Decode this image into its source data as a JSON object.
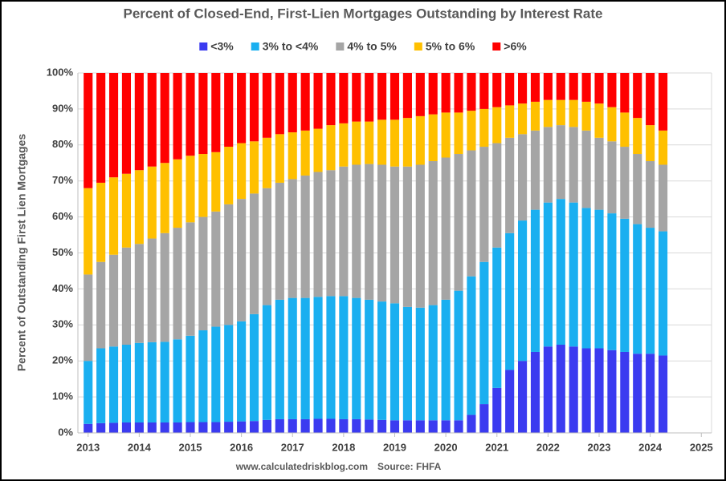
{
  "chart_data": {
    "type": "stacked_bar",
    "title": "Percent of Closed-End, First-Lien Mortgages Outstanding by Interest Rate",
    "y_label": "Percent of Outstanding First Lien Mortgages",
    "footer": [
      "www.calculatedriskblog.com",
      "Source: FHFA"
    ],
    "x": [
      2013,
      2013.25,
      2013.5,
      2013.75,
      2014,
      2014.25,
      2014.5,
      2014.75,
      2015,
      2015.25,
      2015.5,
      2015.75,
      2016,
      2016.25,
      2016.5,
      2016.75,
      2017,
      2017.25,
      2017.5,
      2017.75,
      2018,
      2018.25,
      2018.5,
      2018.75,
      2019,
      2019.25,
      2019.5,
      2019.75,
      2020,
      2020.25,
      2020.5,
      2020.75,
      2021,
      2021.25,
      2021.5,
      2021.75,
      2022,
      2022.25,
      2022.5,
      2022.75,
      2023,
      2023.25,
      2023.5,
      2023.75,
      2024,
      2024.25
    ],
    "xlim": [
      2012.8,
      2025.2
    ],
    "xticks": [
      2013,
      2014,
      2015,
      2016,
      2017,
      2018,
      2019,
      2020,
      2021,
      2022,
      2023,
      2024,
      2025
    ],
    "ylim": [
      0,
      100
    ],
    "yticks": [
      {
        "value": 0,
        "label": "0%"
      },
      {
        "value": 10,
        "label": "10%"
      },
      {
        "value": 20,
        "label": "20%"
      },
      {
        "value": 30,
        "label": "30%"
      },
      {
        "value": 40,
        "label": "40%"
      },
      {
        "value": 50,
        "label": "50%"
      },
      {
        "value": 60,
        "label": "60%"
      },
      {
        "value": 70,
        "label": "70%"
      },
      {
        "value": 80,
        "label": "80%"
      },
      {
        "value": 90,
        "label": "90%"
      },
      {
        "value": 100,
        "label": "100%"
      }
    ],
    "grid": true,
    "legend": "top",
    "series": [
      {
        "name": "<3%",
        "color": "#3b3bf0",
        "values": [
          2.5,
          2.7,
          2.8,
          2.9,
          2.9,
          2.9,
          2.9,
          2.9,
          3,
          3,
          3,
          3.1,
          3.2,
          3.3,
          3.6,
          3.8,
          3.8,
          3.8,
          3.9,
          3.9,
          3.8,
          3.8,
          3.7,
          3.6,
          3.5,
          3.5,
          3.5,
          3.5,
          3.5,
          3.5,
          5,
          8,
          12.5,
          17.5,
          20,
          22.5,
          24,
          24.5,
          24,
          23.5,
          23.5,
          23,
          22.5,
          22,
          22,
          21.5
        ]
      },
      {
        "name": "3% to <4%",
        "color": "#1aaff0",
        "values": [
          17.5,
          20.8,
          21.2,
          21.6,
          22.1,
          22.3,
          22.4,
          23.1,
          24,
          25.5,
          26.5,
          26.9,
          27.8,
          29.7,
          31.9,
          33.2,
          33.7,
          33.7,
          33.9,
          34.1,
          34.2,
          33.7,
          33.3,
          32.9,
          32.5,
          31.5,
          31.3,
          32,
          33.5,
          36,
          38.5,
          39.5,
          39,
          38,
          39,
          39.5,
          40,
          40.5,
          40,
          39,
          38.5,
          38,
          37,
          36,
          35,
          34.5
        ]
      },
      {
        "name": "4% to 5%",
        "color": "#a5a5a5",
        "values": [
          24,
          24,
          25.5,
          27,
          27.5,
          28.8,
          30.2,
          31,
          31.5,
          31.5,
          32,
          33.5,
          34,
          33.5,
          32.5,
          32.5,
          33,
          34,
          34.7,
          35,
          36,
          37,
          37.7,
          38,
          38,
          39,
          39.7,
          40,
          39.5,
          38,
          35,
          32,
          29,
          26.5,
          24,
          22,
          21,
          20.5,
          21,
          21.5,
          20,
          20,
          20,
          19.5,
          18.5,
          18.5
        ]
      },
      {
        "name": "5% to 6%",
        "color": "#ffc000",
        "values": [
          24,
          22,
          21.5,
          20.5,
          20.5,
          20,
          19.5,
          19,
          18.5,
          17.5,
          16.5,
          16,
          15.5,
          14.5,
          14,
          13.5,
          13,
          12.5,
          12,
          12.5,
          12,
          12,
          11.8,
          12.5,
          13,
          13.5,
          13.5,
          13,
          12.5,
          11.5,
          11,
          10.5,
          10,
          9,
          8.5,
          8,
          7.5,
          7,
          7.5,
          8,
          9.5,
          9.5,
          9.5,
          10,
          10,
          9.5
        ]
      },
      {
        "name": ">6%",
        "color": "#ff0000",
        "values": [
          32,
          30.5,
          29,
          28,
          27,
          26,
          25,
          24,
          23,
          22.5,
          22,
          20.5,
          19.5,
          19,
          18,
          17,
          16.5,
          16,
          15.5,
          14.5,
          14,
          13.5,
          13.5,
          13,
          13,
          12.5,
          12,
          11.5,
          11,
          11,
          10.5,
          10,
          9.5,
          9,
          8.5,
          8,
          7.5,
          7.5,
          7.5,
          8,
          8.5,
          9.5,
          11,
          12.5,
          14.5,
          16
        ]
      }
    ]
  }
}
